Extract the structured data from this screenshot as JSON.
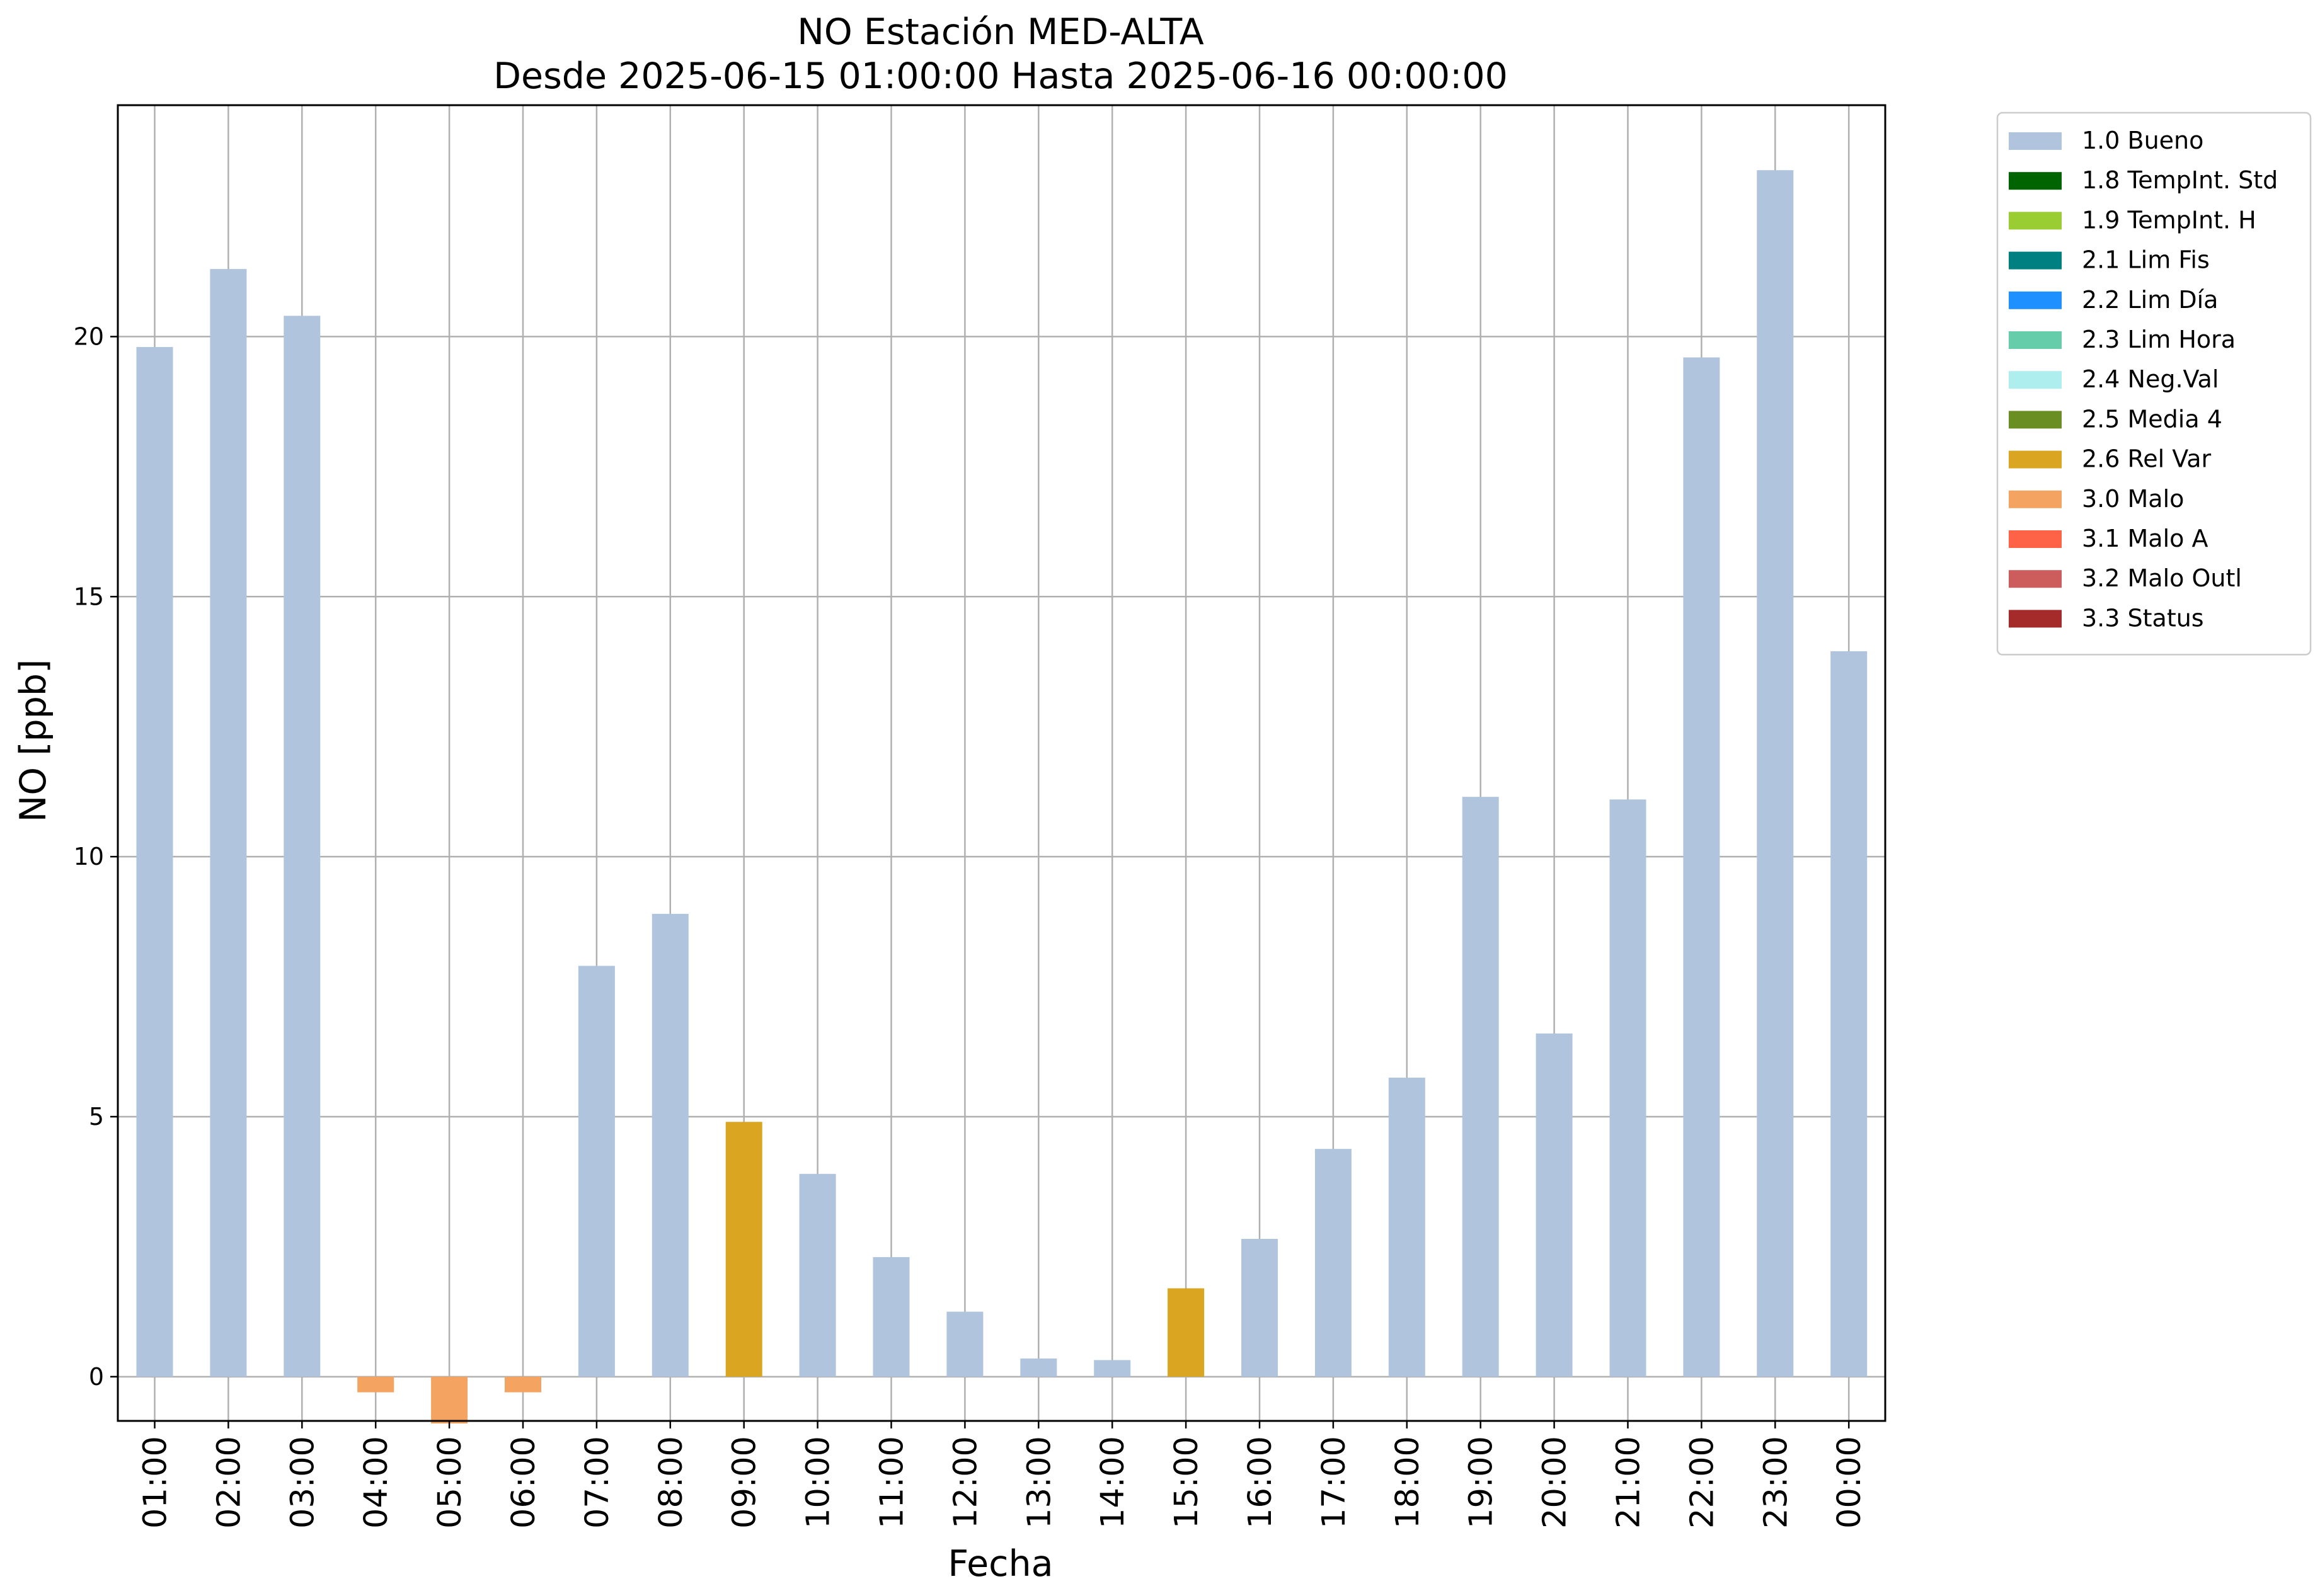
{
  "chart_data": {
    "type": "bar",
    "title": "NO Estación MED-ALTA",
    "subtitle": "Desde 2025-06-15 01:00:00 Hasta 2025-06-16 00:00:00",
    "xlabel": "Fecha",
    "ylabel": "NO [ppb]",
    "ylim": [
      -0.85,
      24.45
    ],
    "yticks": [
      0,
      5,
      10,
      15,
      20
    ],
    "grid": true,
    "legend_position": "outside-right-top",
    "categories": [
      "01:00",
      "02:00",
      "03:00",
      "04:00",
      "05:00",
      "06:00",
      "07:00",
      "08:00",
      "09:00",
      "10:00",
      "11:00",
      "12:00",
      "13:00",
      "14:00",
      "15:00",
      "16:00",
      "17:00",
      "18:00",
      "19:00",
      "20:00",
      "21:00",
      "22:00",
      "23:00",
      "00:00"
    ],
    "values": [
      19.8,
      21.3,
      20.4,
      -0.3,
      -0.9,
      -0.3,
      7.9,
      8.9,
      4.9,
      3.9,
      2.3,
      1.25,
      0.35,
      0.32,
      1.7,
      2.65,
      4.38,
      5.75,
      11.15,
      6.6,
      11.1,
      19.6,
      23.2,
      13.95
    ],
    "flags": [
      "1.0",
      "1.0",
      "1.0",
      "3.0",
      "3.0",
      "3.0",
      "1.0",
      "1.0",
      "2.6",
      "1.0",
      "1.0",
      "1.0",
      "1.0",
      "1.0",
      "2.6",
      "1.0",
      "1.0",
      "1.0",
      "1.0",
      "1.0",
      "1.0",
      "1.0",
      "1.0",
      "1.0"
    ],
    "legend": [
      {
        "code": "1.0",
        "label": "1.0 Bueno",
        "color": "#b0c4de"
      },
      {
        "code": "1.8",
        "label": "1.8 TempInt. Std",
        "color": "#006400"
      },
      {
        "code": "1.9",
        "label": "1.9 TempInt. H",
        "color": "#9acd32"
      },
      {
        "code": "2.1",
        "label": "2.1 Lim Fis",
        "color": "#008080"
      },
      {
        "code": "2.2",
        "label": "2.2 Lim Día",
        "color": "#1e90ff"
      },
      {
        "code": "2.3",
        "label": "2.3 Lim Hora",
        "color": "#66cdaa"
      },
      {
        "code": "2.4",
        "label": "2.4 Neg.Val",
        "color": "#afeeee"
      },
      {
        "code": "2.5",
        "label": "2.5 Media 4",
        "color": "#6b8e23"
      },
      {
        "code": "2.6",
        "label": "2.6 Rel Var",
        "color": "#daa520"
      },
      {
        "code": "3.0",
        "label": "3.0 Malo",
        "color": "#f4a460"
      },
      {
        "code": "3.1",
        "label": "3.1 Malo A",
        "color": "#ff6347"
      },
      {
        "code": "3.2",
        "label": "3.2 Malo Outl",
        "color": "#cd5c5c"
      },
      {
        "code": "3.3",
        "label": "3.3 Status",
        "color": "#a52a2a"
      }
    ]
  }
}
